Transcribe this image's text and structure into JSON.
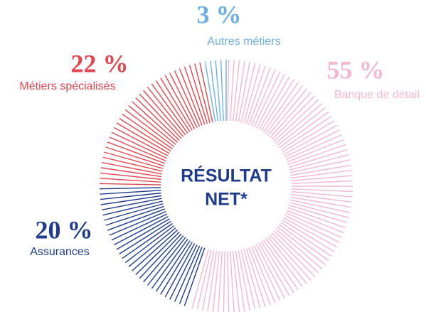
{
  "chart_data": {
    "type": "pie",
    "center_label": [
      "RÉSULTAT",
      "NET*"
    ],
    "categories": [
      "Banque de détail",
      "Assurances",
      "Métiers spécialisés",
      "Autres métiers"
    ],
    "values": [
      55,
      20,
      22,
      3
    ],
    "value_labels": [
      "55 %",
      "20 %",
      "22 %",
      "3 %"
    ],
    "colors": [
      "#f4b8ca",
      "#1f3b8c",
      "#e1464f",
      "#6cb0e2"
    ]
  }
}
